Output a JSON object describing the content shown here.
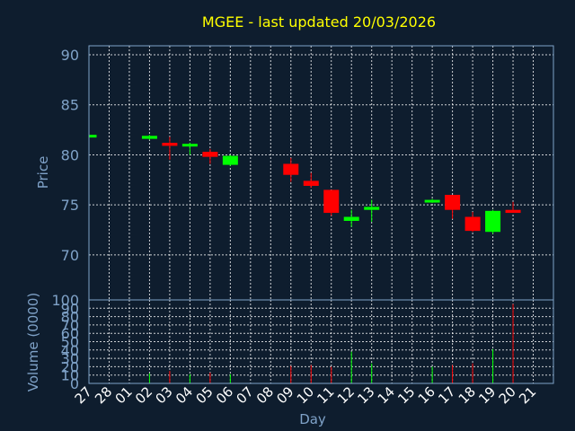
{
  "chart_data": {
    "type": "candlestick",
    "title": "MGEE - last updated 20/03/2026",
    "xlabel": "Day",
    "x_ticks": [
      "27",
      "28",
      "01",
      "02",
      "03",
      "04",
      "05",
      "06",
      "07",
      "08",
      "09",
      "10",
      "11",
      "12",
      "13",
      "14",
      "15",
      "16",
      "17",
      "18",
      "19",
      "20",
      "21"
    ],
    "colors": {
      "background": "#0e1d2e",
      "up": "#00ff00",
      "down": "#ff0000",
      "grid": "#ffffff",
      "title": "#ffff00",
      "tick": "#7fa2c8"
    },
    "price_panel": {
      "ylabel": "Price",
      "ylim": [
        65.5,
        90.9
      ],
      "yticks": [
        70,
        75,
        80,
        85,
        90
      ],
      "grid": true
    },
    "volume_panel": {
      "ylabel": "Volume (0000)",
      "ylim": [
        0,
        100
      ],
      "yticks": [
        0,
        10,
        20,
        30,
        40,
        50,
        60,
        70,
        80,
        90,
        100
      ],
      "grid": true
    },
    "candles": [
      {
        "day": "27",
        "open": 81.8,
        "high": 82.0,
        "low": 81.6,
        "close": 82.0,
        "volume": 0
      },
      {
        "day": "02",
        "open": 81.6,
        "high": 82.0,
        "low": 81.5,
        "close": 81.9,
        "volume": 12
      },
      {
        "day": "03",
        "open": 81.2,
        "high": 81.8,
        "low": 79.5,
        "close": 80.9,
        "volume": 15
      },
      {
        "day": "04",
        "open": 81.0,
        "high": 81.2,
        "low": 80.0,
        "close": 81.1,
        "volume": 11
      },
      {
        "day": "05",
        "open": 80.3,
        "high": 80.6,
        "low": 79.1,
        "close": 79.8,
        "volume": 13
      },
      {
        "day": "06",
        "open": 79.0,
        "high": 80.0,
        "low": 78.9,
        "close": 79.9,
        "volume": 11
      },
      {
        "day": "09",
        "open": 79.1,
        "high": 79.7,
        "low": 77.3,
        "close": 78.0,
        "volume": 21
      },
      {
        "day": "10",
        "open": 77.4,
        "high": 78.2,
        "low": 76.7,
        "close": 76.9,
        "volume": 22
      },
      {
        "day": "11",
        "open": 76.5,
        "high": 76.5,
        "low": 73.9,
        "close": 74.2,
        "volume": 20
      },
      {
        "day": "12",
        "open": 73.4,
        "high": 74.5,
        "low": 72.8,
        "close": 73.8,
        "volume": 38
      },
      {
        "day": "13",
        "open": 74.5,
        "high": 75.5,
        "low": 73.3,
        "close": 74.8,
        "volume": 24
      },
      {
        "day": "16",
        "open": 75.3,
        "high": 75.6,
        "low": 75.2,
        "close": 75.5,
        "volume": 20
      },
      {
        "day": "17",
        "open": 76.0,
        "high": 76.0,
        "low": 73.6,
        "close": 74.5,
        "volume": 22
      },
      {
        "day": "18",
        "open": 73.8,
        "high": 74.3,
        "low": 72.3,
        "close": 72.4,
        "volume": 24
      },
      {
        "day": "19",
        "open": 72.3,
        "high": 74.5,
        "low": 72.1,
        "close": 74.4,
        "volume": 41
      },
      {
        "day": "20",
        "open": 74.5,
        "high": 75.3,
        "low": 74.2,
        "close": 74.2,
        "volume": 95
      }
    ]
  }
}
